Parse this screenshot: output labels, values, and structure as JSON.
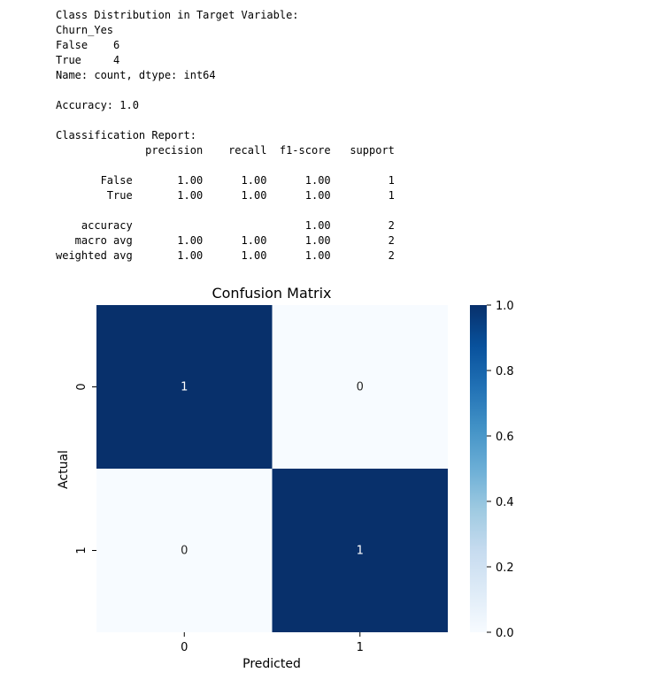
{
  "text_output": {
    "lines": [
      "Class Distribution in Target Variable:",
      "Churn_Yes",
      "False    6",
      "True     4",
      "Name: count, dtype: int64",
      "",
      "Accuracy: 1.0",
      "",
      "Classification Report:",
      "              precision    recall  f1-score   support",
      "",
      "       False       1.00      1.00      1.00         1",
      "        True       1.00      1.00      1.00         1",
      "",
      "    accuracy                           1.00         2",
      "   macro avg       1.00      1.00      1.00         2",
      "weighted avg       1.00      1.00      1.00         2"
    ]
  },
  "chart_data": {
    "type": "heatmap",
    "title": "Confusion Matrix",
    "xlabel": "Predicted",
    "ylabel": "Actual",
    "x_categories": [
      "0",
      "1"
    ],
    "y_categories": [
      "0",
      "1"
    ],
    "values": [
      [
        1,
        0
      ],
      [
        0,
        1
      ]
    ],
    "colormap": "Blues",
    "color_low": "#f7fbff",
    "color_high": "#08306b",
    "colorbar": {
      "vmin": 0.0,
      "vmax": 1.0,
      "ticks": [
        "0.0",
        "0.2",
        "0.4",
        "0.6",
        "0.8",
        "1.0"
      ],
      "tick_values": [
        0.0,
        0.2,
        0.4,
        0.6,
        0.8,
        1.0
      ]
    },
    "annot_color_dark_cell": "#ffffff",
    "annot_color_light_cell": "#262626"
  }
}
